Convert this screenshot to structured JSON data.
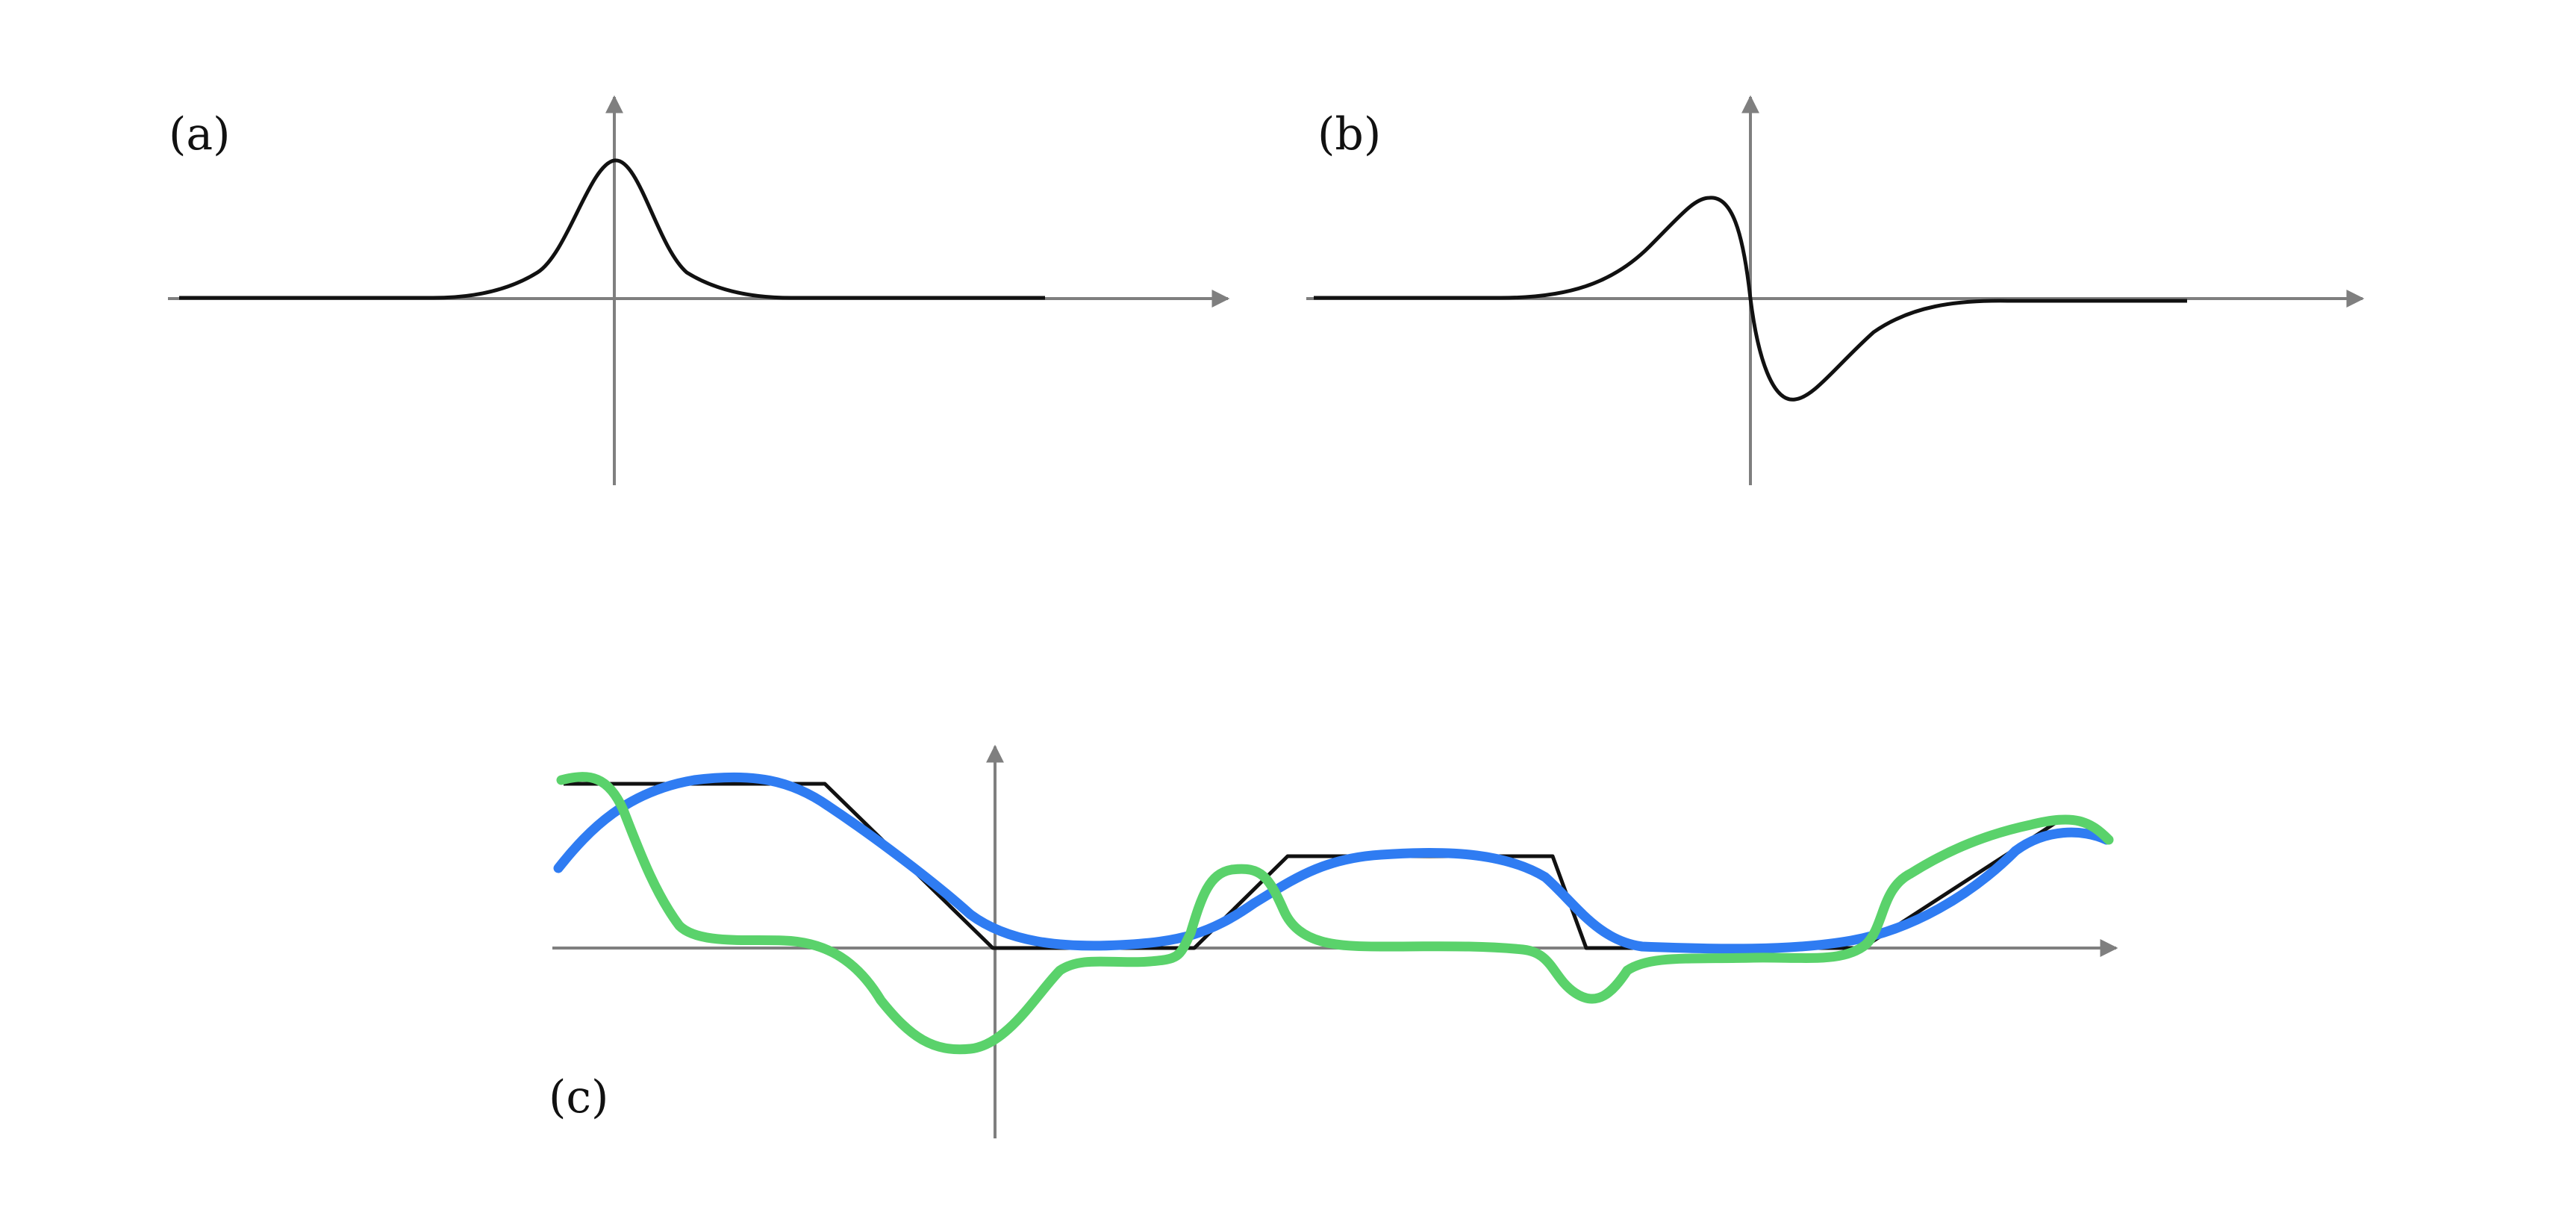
{
  "panels": [
    {
      "id": "a",
      "label": "(a)"
    },
    {
      "id": "b",
      "label": "(b)"
    },
    {
      "id": "c",
      "label": "(c)"
    }
  ],
  "colors": {
    "axis": "#7f7f7f",
    "curve": "#111111",
    "blue_sketch": "#2f7cf2",
    "green_sketch": "#5ad26b"
  },
  "icons": {
    "axis_arrowhead": "arrowhead-icon"
  }
}
